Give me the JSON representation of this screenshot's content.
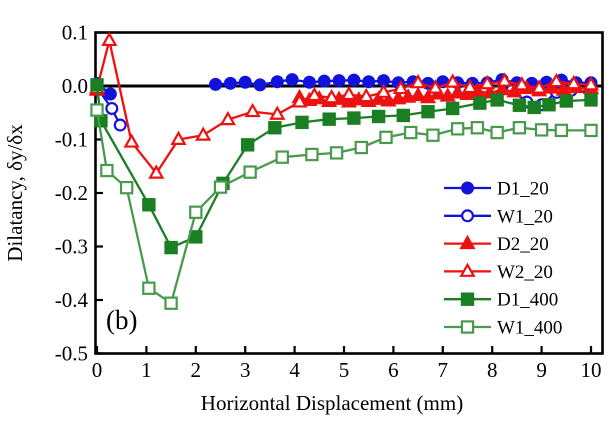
{
  "chart_data": {
    "type": "line",
    "title": "",
    "xlabel": "Horizontal Displacement (mm)",
    "ylabel": "Dilatancy, δy/δx",
    "annotation": "(b)",
    "xlim": [
      0,
      10.25
    ],
    "ylim": [
      -0.5,
      0.1
    ],
    "xticks": [
      0,
      1,
      2,
      3,
      4,
      5,
      6,
      7,
      8,
      9,
      10
    ],
    "xtick_labels": [
      "0",
      "1",
      "2",
      "3",
      "4",
      "5",
      "6",
      "7",
      "8",
      "9",
      "10"
    ],
    "yticks": [
      0.1,
      0.0,
      -0.1,
      -0.2,
      -0.3,
      -0.4,
      -0.5
    ],
    "ytick_labels": [
      "0.1",
      "0.0",
      "-0.1",
      "-0.2",
      "-0.3",
      "-0.4",
      "-0.5"
    ],
    "grid": false,
    "zero_line": true,
    "legend_position": "inside-right-middle",
    "frame_color": "#000000",
    "series": [
      {
        "name": "D1_20",
        "color": "#1212dd",
        "marker": "circle",
        "fill": "filled",
        "points": [
          [
            0,
            0.005
          ],
          [
            0.27,
            -0.015
          ],
          null,
          [
            2.4,
            0.003
          ],
          [
            2.7,
            0.005
          ],
          [
            3.0,
            0.007
          ],
          [
            3.3,
            0.002
          ],
          [
            3.65,
            0.008
          ],
          [
            3.95,
            0.012
          ],
          [
            4.3,
            0.007
          ],
          [
            4.6,
            0.009
          ],
          [
            4.9,
            0.01
          ],
          [
            5.2,
            0.011
          ],
          [
            5.5,
            0.008
          ],
          [
            5.8,
            0.01
          ],
          [
            6.1,
            0.006
          ],
          [
            6.4,
            0.008
          ],
          [
            6.7,
            0.005
          ],
          [
            7.0,
            0.008
          ],
          [
            7.3,
            0.006
          ],
          [
            7.6,
            0.005
          ],
          [
            7.9,
            0.006
          ],
          [
            8.2,
            0.012
          ],
          [
            8.5,
            0.006
          ],
          [
            8.8,
            0.005
          ],
          [
            9.1,
            0.007
          ],
          [
            9.4,
            0.011
          ],
          [
            9.7,
            0.006
          ],
          [
            10,
            0.006
          ]
        ]
      },
      {
        "name": "W1_20",
        "color": "#1212dd",
        "marker": "circle",
        "fill": "open",
        "points": [
          [
            0,
            -0.003
          ],
          [
            0.3,
            -0.042
          ],
          [
            0.47,
            -0.073
          ],
          null,
          [
            8.4,
            -0.008
          ],
          [
            8.7,
            -0.03
          ],
          [
            9.0,
            -0.035
          ],
          [
            9.3,
            -0.012
          ],
          [
            9.6,
            -0.008
          ],
          [
            10,
            -0.012
          ]
        ]
      },
      {
        "name": "D2_20",
        "color": "#ee1111",
        "marker": "triangle",
        "fill": "filled",
        "points": [
          [
            0,
            -0.008
          ],
          null,
          [
            4.1,
            -0.022
          ],
          [
            4.3,
            -0.027
          ],
          [
            4.5,
            -0.024
          ],
          [
            4.7,
            -0.029
          ],
          [
            4.9,
            -0.025
          ],
          [
            5.1,
            -0.03
          ],
          [
            5.3,
            -0.026
          ],
          [
            5.5,
            -0.029
          ],
          [
            5.7,
            -0.025
          ],
          [
            5.9,
            -0.028
          ],
          [
            6.1,
            -0.024
          ],
          [
            6.3,
            -0.021
          ],
          [
            6.5,
            -0.018
          ],
          [
            6.7,
            -0.022
          ],
          [
            6.9,
            -0.015
          ],
          [
            7.1,
            -0.019
          ],
          [
            7.3,
            -0.013
          ],
          [
            7.5,
            -0.016
          ],
          [
            7.7,
            -0.01
          ],
          [
            7.95,
            -0.013
          ],
          [
            8.2,
            -0.007
          ],
          [
            8.45,
            -0.011
          ],
          [
            8.7,
            -0.005
          ],
          [
            8.95,
            -0.009
          ],
          [
            9.2,
            -0.004
          ],
          [
            9.45,
            -0.008
          ],
          [
            9.7,
            -0.003
          ],
          [
            10,
            -0.005
          ]
        ]
      },
      {
        "name": "W2_20",
        "color": "#ee1111",
        "marker": "triangle",
        "fill": "open",
        "points": [
          [
            0,
            -0.005
          ],
          [
            0.25,
            0.085
          ],
          [
            0.7,
            -0.105
          ],
          [
            1.2,
            -0.163
          ],
          [
            1.65,
            -0.1
          ],
          [
            2.15,
            -0.092
          ],
          [
            2.65,
            -0.063
          ],
          [
            3.15,
            -0.048
          ],
          [
            3.65,
            -0.053
          ],
          [
            4.1,
            -0.03
          ],
          [
            4.4,
            -0.018
          ],
          [
            4.75,
            -0.022
          ],
          [
            5.1,
            -0.016
          ],
          [
            5.45,
            -0.02
          ],
          [
            5.8,
            -0.012
          ],
          [
            6.15,
            -0.005
          ],
          [
            6.5,
            0.006
          ],
          [
            6.85,
            -0.004
          ],
          [
            7.2,
            0.007
          ],
          [
            7.55,
            -0.003
          ],
          [
            7.9,
            0.004
          ],
          [
            8.25,
            0.009
          ],
          [
            8.6,
            0.002
          ],
          [
            8.95,
            -0.004
          ],
          [
            9.3,
            0.008
          ],
          [
            9.65,
            0.004
          ],
          [
            10,
            0.002
          ]
        ]
      },
      {
        "name": "D1_400",
        "color": "#1b7e22",
        "marker": "square",
        "fill": "filled",
        "points": [
          [
            0,
            0.002
          ],
          [
            0.08,
            -0.065
          ],
          [
            1.05,
            -0.222
          ],
          [
            1.5,
            -0.302
          ],
          [
            2.0,
            -0.282
          ],
          [
            2.55,
            -0.182
          ],
          [
            3.05,
            -0.11
          ],
          [
            3.6,
            -0.078
          ],
          [
            4.15,
            -0.068
          ],
          [
            4.7,
            -0.062
          ],
          [
            5.2,
            -0.06
          ],
          [
            5.7,
            -0.057
          ],
          [
            6.2,
            -0.055
          ],
          [
            6.7,
            -0.048
          ],
          [
            7.2,
            -0.042
          ],
          [
            7.75,
            -0.032
          ],
          [
            8.1,
            -0.026
          ],
          [
            8.55,
            -0.036
          ],
          [
            8.85,
            -0.04
          ],
          [
            9.15,
            -0.035
          ],
          [
            9.5,
            -0.028
          ],
          [
            10,
            -0.026
          ]
        ]
      },
      {
        "name": "W1_400",
        "color": "#4a9a4e",
        "marker": "square",
        "fill": "open",
        "points": [
          [
            0,
            -0.045
          ],
          [
            0.2,
            -0.158
          ],
          [
            0.6,
            -0.19
          ],
          [
            1.05,
            -0.378
          ],
          [
            1.5,
            -0.406
          ],
          [
            2.0,
            -0.236
          ],
          [
            2.5,
            -0.189
          ],
          [
            3.1,
            -0.161
          ],
          [
            3.75,
            -0.133
          ],
          [
            4.35,
            -0.128
          ],
          [
            4.85,
            -0.125
          ],
          [
            5.35,
            -0.115
          ],
          [
            5.85,
            -0.096
          ],
          [
            6.35,
            -0.087
          ],
          [
            6.8,
            -0.092
          ],
          [
            7.3,
            -0.08
          ],
          [
            7.7,
            -0.078
          ],
          [
            8.1,
            -0.087
          ],
          [
            8.55,
            -0.078
          ],
          [
            9.0,
            -0.082
          ],
          [
            9.4,
            -0.083
          ],
          [
            10,
            -0.083
          ]
        ]
      }
    ]
  }
}
